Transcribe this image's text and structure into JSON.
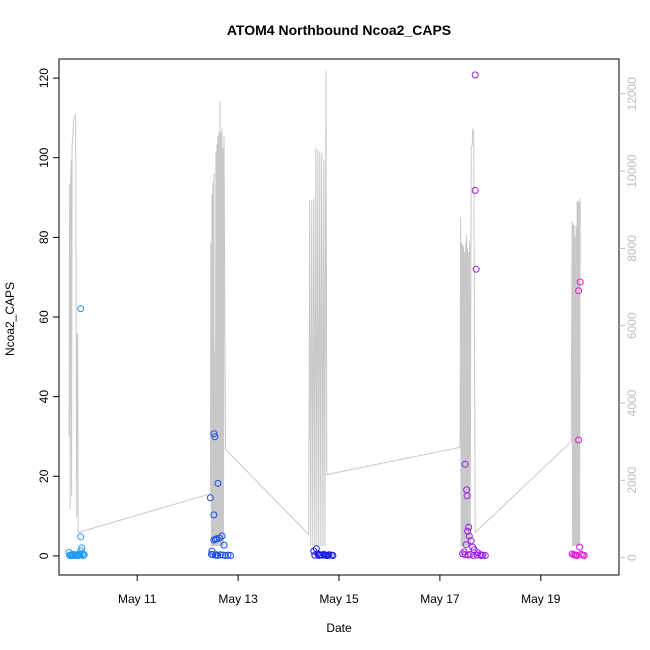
{
  "chart_data": {
    "type": "scatter",
    "title": "ATOM4 Northbound Ncoa2_CAPS",
    "xlabel": "Date",
    "ylabel": "Ncoa2_CAPS",
    "x_ticks": [
      {
        "label": "May 11",
        "day": 11
      },
      {
        "label": "May 13",
        "day": 13
      },
      {
        "label": "May 15",
        "day": 15
      },
      {
        "label": "May 17",
        "day": 17
      },
      {
        "label": "May 19",
        "day": 19
      }
    ],
    "xlim_days": [
      9.45,
      20.55
    ],
    "ylim": [
      -4.8,
      124.8
    ],
    "y_ticks": [
      0,
      20,
      40,
      60,
      80,
      100,
      120
    ],
    "y2lim": [
      -450,
      12900
    ],
    "y2_ticks": [
      0,
      2000,
      4000,
      6000,
      8000,
      10000,
      12000
    ],
    "grid": false,
    "series": [
      {
        "color": "#1E9BF5",
        "points": [
          [
            9.65,
            0.9
          ],
          [
            9.68,
            0.3
          ],
          [
            9.7,
            0.1
          ],
          [
            9.72,
            0.2
          ],
          [
            9.75,
            0.4
          ],
          [
            9.78,
            0.2
          ],
          [
            9.8,
            0.1
          ],
          [
            9.82,
            0.3
          ],
          [
            9.85,
            0.2
          ],
          [
            9.87,
            0.5
          ],
          [
            9.88,
            1.3
          ],
          [
            9.9,
            2.0
          ],
          [
            9.88,
            4.8
          ],
          [
            9.88,
            62.1
          ],
          [
            9.92,
            0.6
          ],
          [
            9.95,
            0.3
          ],
          [
            9.66,
            0.1
          ],
          [
            9.74,
            0.1
          ],
          [
            9.84,
            0.1
          ],
          [
            9.93,
            0.1
          ]
        ]
      },
      {
        "color": "#1A4FEA",
        "points": [
          [
            12.45,
            14.6
          ],
          [
            12.48,
            1.2
          ],
          [
            12.5,
            0.3
          ],
          [
            12.52,
            30.7
          ],
          [
            12.54,
            29.9
          ],
          [
            12.55,
            4.2
          ],
          [
            12.58,
            4.3
          ],
          [
            12.6,
            18.2
          ],
          [
            12.63,
            4.5
          ],
          [
            12.52,
            10.3
          ],
          [
            12.52,
            4.0
          ],
          [
            12.68,
            5.0
          ],
          [
            12.72,
            2.7
          ],
          [
            12.55,
            0.2
          ],
          [
            12.6,
            0.1
          ],
          [
            12.65,
            0.3
          ],
          [
            12.7,
            0.2
          ],
          [
            12.75,
            0.1
          ],
          [
            12.8,
            0.2
          ],
          [
            12.85,
            0.1
          ],
          [
            12.47,
            0.4
          ],
          [
            12.57,
            0.3
          ]
        ]
      },
      {
        "color": "#1A1AE6",
        "points": [
          [
            14.5,
            1.2
          ],
          [
            14.55,
            1.8
          ],
          [
            14.58,
            0.5
          ],
          [
            14.62,
            0.3
          ],
          [
            14.66,
            0.2
          ],
          [
            14.7,
            0.4
          ],
          [
            14.75,
            0.1
          ],
          [
            14.8,
            0.3
          ],
          [
            14.85,
            0.2
          ],
          [
            14.88,
            0.1
          ],
          [
            14.52,
            0.2
          ],
          [
            14.6,
            0.1
          ],
          [
            14.72,
            0.2
          ],
          [
            14.78,
            0.1
          ]
        ]
      },
      {
        "color": "#9A1AE6",
        "points": [
          [
            17.45,
            0.5
          ],
          [
            17.48,
            1.0
          ],
          [
            17.5,
            23.0
          ],
          [
            17.52,
            2.8
          ],
          [
            17.53,
            16.6
          ],
          [
            17.54,
            15.1
          ],
          [
            17.55,
            6.2
          ],
          [
            17.57,
            7.2
          ],
          [
            17.58,
            5.0
          ],
          [
            17.62,
            3.8
          ],
          [
            17.65,
            2.2
          ],
          [
            17.68,
            1.5
          ],
          [
            17.72,
            72.0
          ],
          [
            17.7,
            91.8
          ],
          [
            17.7,
            120.8
          ],
          [
            17.75,
            0.8
          ],
          [
            17.8,
            0.3
          ],
          [
            17.85,
            0.2
          ],
          [
            17.9,
            0.1
          ],
          [
            17.5,
            0.3
          ],
          [
            17.56,
            0.2
          ],
          [
            17.6,
            0.4
          ],
          [
            17.66,
            0.1
          ],
          [
            17.74,
            0.2
          ],
          [
            17.82,
            0.1
          ]
        ]
      },
      {
        "color": "#E01AD4",
        "points": [
          [
            19.62,
            0.5
          ],
          [
            19.65,
            0.3
          ],
          [
            19.68,
            0.2
          ],
          [
            19.72,
            0.1
          ],
          [
            19.75,
            29.1
          ],
          [
            19.77,
            2.2
          ],
          [
            19.78,
            68.8
          ],
          [
            19.75,
            66.6
          ],
          [
            19.8,
            0.4
          ],
          [
            19.83,
            0.2
          ],
          [
            19.86,
            0.1
          ],
          [
            19.7,
            0.2
          ]
        ]
      }
    ],
    "overlay_line": {
      "color": "#c8c8c8",
      "points": [
        [
          9.65,
          3150
        ],
        [
          9.66,
          9650
        ],
        [
          9.67,
          1250
        ],
        [
          9.68,
          9650
        ],
        [
          9.69,
          10300
        ],
        [
          9.7,
          1600
        ],
        [
          9.71,
          10700
        ],
        [
          9.72,
          10800
        ],
        [
          9.73,
          11000
        ],
        [
          9.74,
          11300
        ],
        [
          9.75,
          11400
        ],
        [
          9.78,
          11450
        ],
        [
          9.8,
          1050
        ],
        [
          9.81,
          5600
        ],
        [
          9.82,
          5800
        ],
        [
          9.83,
          650
        ],
        [
          12.45,
          1650
        ],
        [
          12.46,
          8150
        ],
        [
          12.47,
          300
        ],
        [
          12.48,
          9400
        ],
        [
          12.49,
          300
        ],
        [
          12.5,
          9700
        ],
        [
          12.51,
          300
        ],
        [
          12.52,
          9950
        ],
        [
          12.53,
          300
        ],
        [
          12.54,
          5300
        ],
        [
          12.55,
          300
        ],
        [
          12.56,
          10500
        ],
        [
          12.57,
          300
        ],
        [
          12.58,
          10700
        ],
        [
          12.59,
          300
        ],
        [
          12.6,
          10900
        ],
        [
          12.61,
          300
        ],
        [
          12.62,
          11000
        ],
        [
          12.63,
          300
        ],
        [
          12.64,
          11800
        ],
        [
          12.65,
          300
        ],
        [
          12.66,
          11000
        ],
        [
          12.67,
          300
        ],
        [
          12.68,
          11100
        ],
        [
          12.69,
          300
        ],
        [
          12.7,
          10600
        ],
        [
          12.71,
          300
        ],
        [
          12.72,
          10900
        ],
        [
          12.75,
          2800
        ],
        [
          14.4,
          600
        ],
        [
          14.42,
          9250
        ],
        [
          14.44,
          300
        ],
        [
          14.46,
          9250
        ],
        [
          14.48,
          300
        ],
        [
          14.5,
          9300
        ],
        [
          14.52,
          300
        ],
        [
          14.54,
          10600
        ],
        [
          14.56,
          300
        ],
        [
          14.58,
          10550
        ],
        [
          14.6,
          300
        ],
        [
          14.62,
          10500
        ],
        [
          14.64,
          300
        ],
        [
          14.66,
          10450
        ],
        [
          14.68,
          300
        ],
        [
          14.7,
          10300
        ],
        [
          14.72,
          300
        ],
        [
          14.74,
          12600
        ],
        [
          14.76,
          2150
        ],
        [
          17.4,
          2850
        ],
        [
          17.41,
          8800
        ],
        [
          17.42,
          300
        ],
        [
          17.43,
          8150
        ],
        [
          17.44,
          300
        ],
        [
          17.45,
          8100
        ],
        [
          17.46,
          300
        ],
        [
          17.47,
          8050
        ],
        [
          17.48,
          300
        ],
        [
          17.49,
          7900
        ],
        [
          17.5,
          300
        ],
        [
          17.51,
          8150
        ],
        [
          17.52,
          300
        ],
        [
          17.53,
          8350
        ],
        [
          17.54,
          300
        ],
        [
          17.55,
          8000
        ],
        [
          17.56,
          300
        ],
        [
          17.57,
          7900
        ],
        [
          17.58,
          300
        ],
        [
          17.59,
          8200
        ],
        [
          17.6,
          300
        ],
        [
          17.62,
          10600
        ],
        [
          17.63,
          10650
        ],
        [
          17.64,
          10650
        ],
        [
          17.65,
          11100
        ],
        [
          17.66,
          11050
        ],
        [
          17.67,
          11000
        ],
        [
          17.7,
          650
        ],
        [
          19.6,
          3000
        ],
        [
          19.62,
          8700
        ],
        [
          19.63,
          300
        ],
        [
          19.64,
          8650
        ],
        [
          19.65,
          300
        ],
        [
          19.66,
          8600
        ],
        [
          19.67,
          300
        ],
        [
          19.68,
          8300
        ],
        [
          19.69,
          300
        ],
        [
          19.7,
          8600
        ],
        [
          19.71,
          300
        ],
        [
          19.72,
          9200
        ],
        [
          19.73,
          300
        ],
        [
          19.74,
          9250
        ],
        [
          19.75,
          300
        ],
        [
          19.76,
          9200
        ],
        [
          19.77,
          300
        ],
        [
          19.78,
          9300
        ]
      ]
    }
  }
}
